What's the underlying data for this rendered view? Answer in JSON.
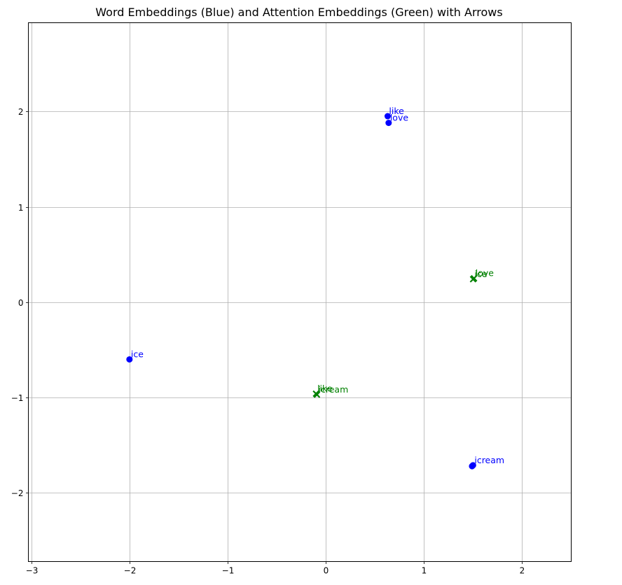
{
  "chart_data": {
    "type": "scatter",
    "title": "Word Embeddings (Blue) and Attention Embeddings (Green) with Arrows",
    "xlabel": "",
    "ylabel": "",
    "xlim": [
      -3.03,
      2.5
    ],
    "ylim": [
      -2.72,
      2.93
    ],
    "x_ticks": [
      -3,
      -2,
      -1,
      0,
      1,
      2
    ],
    "y_ticks": [
      -2,
      -1,
      0,
      1,
      2
    ],
    "x_tick_labels": [
      "−3",
      "−2",
      "−1",
      "0",
      "1",
      "2"
    ],
    "y_tick_labels": [
      "−2",
      "−1",
      "0",
      "1",
      "2"
    ],
    "grid": true,
    "colors": {
      "word": "#0000ff",
      "attention": "#008000",
      "grid": "#b0b0b0"
    },
    "series": [
      {
        "marker": "circle",
        "color": "#0000ff",
        "points": [
          {
            "label": "like",
            "x": 0.63,
            "y": 1.95
          },
          {
            "label": "love",
            "x": 0.64,
            "y": 1.88
          },
          {
            "label": "ice",
            "x": -2.0,
            "y": -0.6
          },
          {
            "label": "icream",
            "x": 1.5,
            "y": -1.71
          },
          {
            "label": "",
            "x": 1.49,
            "y": -1.72
          }
        ]
      },
      {
        "marker": "x",
        "color": "#008000",
        "points": [
          {
            "label": "ice",
            "x": 1.5,
            "y": 0.24
          },
          {
            "label": "love",
            "x": 1.51,
            "y": 0.25
          },
          {
            "label": "like",
            "x": -0.1,
            "y": -0.96
          },
          {
            "label": "icream",
            "x": -0.09,
            "y": -0.97
          }
        ]
      }
    ]
  }
}
